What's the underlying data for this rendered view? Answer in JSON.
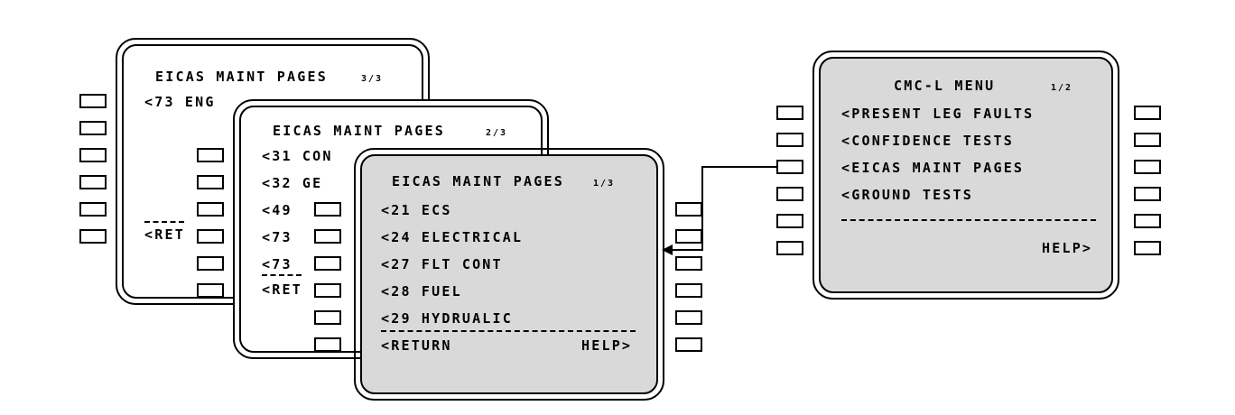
{
  "page3": {
    "title": "EICAS MAINT PAGES",
    "page_no": "3/3",
    "lines": [
      "<73 ENG"
    ],
    "return": "<RET"
  },
  "page2": {
    "title": "EICAS MAINT PAGES",
    "page_no": "2/3",
    "lines": [
      "<31 CON",
      "<32 GE",
      "<49",
      "<73",
      "<73"
    ],
    "return": "<RET"
  },
  "page1": {
    "title": "EICAS MAINT PAGES",
    "page_no": "1/3",
    "lines": [
      "<21 ECS",
      "<24 ELECTRICAL",
      "<27 FLT CONT",
      "<28 FUEL",
      "<29 HYDRUALIC"
    ],
    "return": "<RETURN",
    "help": "HELP>"
  },
  "cmc_menu": {
    "title": "CMC-L MENU",
    "page_no": "1/2",
    "lines": [
      "<PRESENT LEG FAULTS",
      "<CONFIDENCE TESTS",
      "<EICAS MAINT PAGES",
      "<GROUND TESTS"
    ],
    "help": "HELP>"
  }
}
